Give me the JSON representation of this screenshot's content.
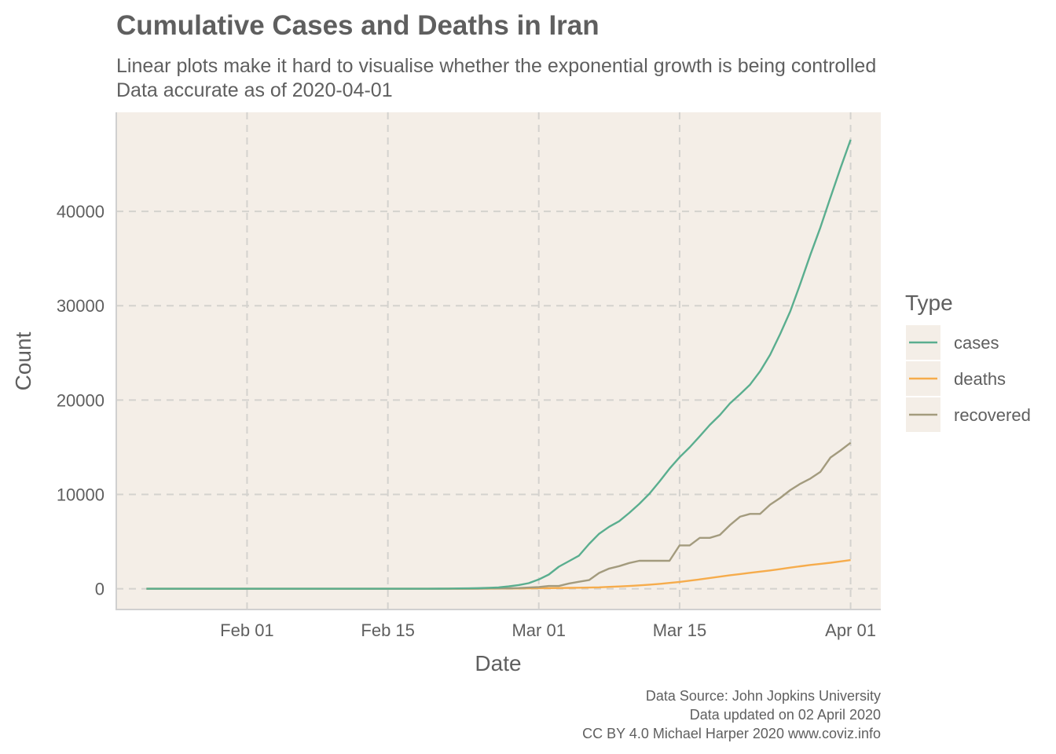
{
  "chart_data": {
    "type": "line",
    "title": "Cumulative Cases and Deaths in Iran",
    "subtitle_lines": [
      "Linear plots make it hard to visualise whether the exponential growth is being controlled",
      "Data accurate as of 2020-04-01"
    ],
    "xlabel": "Date",
    "ylabel": "Count",
    "x_ticks": [
      {
        "date": "2020-02-01",
        "label": "Feb 01"
      },
      {
        "date": "2020-02-15",
        "label": "Feb 15"
      },
      {
        "date": "2020-03-01",
        "label": "Mar 01"
      },
      {
        "date": "2020-03-15",
        "label": "Mar 15"
      },
      {
        "date": "2020-04-01",
        "label": "Apr 01"
      }
    ],
    "y_ticks": [
      0,
      10000,
      20000,
      30000,
      40000
    ],
    "xlim": [
      "2020-01-19",
      "2020-04-04"
    ],
    "ylim": [
      -2200,
      50500
    ],
    "grid": true,
    "legend": {
      "title": "Type",
      "position": "right"
    },
    "x": [
      "2020-01-22",
      "2020-01-29",
      "2020-02-05",
      "2020-02-12",
      "2020-02-19",
      "2020-02-20",
      "2020-02-21",
      "2020-02-22",
      "2020-02-23",
      "2020-02-24",
      "2020-02-25",
      "2020-02-26",
      "2020-02-27",
      "2020-02-28",
      "2020-02-29",
      "2020-03-01",
      "2020-03-02",
      "2020-03-03",
      "2020-03-04",
      "2020-03-05",
      "2020-03-06",
      "2020-03-07",
      "2020-03-08",
      "2020-03-09",
      "2020-03-10",
      "2020-03-11",
      "2020-03-12",
      "2020-03-13",
      "2020-03-14",
      "2020-03-15",
      "2020-03-16",
      "2020-03-17",
      "2020-03-18",
      "2020-03-19",
      "2020-03-20",
      "2020-03-21",
      "2020-03-22",
      "2020-03-23",
      "2020-03-24",
      "2020-03-25",
      "2020-03-26",
      "2020-03-27",
      "2020-03-28",
      "2020-03-29",
      "2020-03-30",
      "2020-03-31",
      "2020-04-01"
    ],
    "series": [
      {
        "name": "cases",
        "color": "#5aae8f",
        "values": [
          0,
          0,
          0,
          0,
          2,
          5,
          18,
          28,
          43,
          61,
          95,
          139,
          245,
          388,
          593,
          978,
          1501,
          2336,
          2922,
          3513,
          4747,
          5823,
          6566,
          7161,
          8042,
          9000,
          10075,
          11364,
          12729,
          13938,
          14991,
          16169,
          17361,
          18407,
          19644,
          20610,
          21638,
          23049,
          24811,
          27017,
          29406,
          32332,
          35408,
          38309,
          41495,
          44605,
          47593
        ]
      },
      {
        "name": "deaths",
        "color": "#f6ac4c",
        "values": [
          0,
          0,
          0,
          0,
          2,
          2,
          4,
          5,
          8,
          12,
          16,
          19,
          26,
          34,
          43,
          54,
          66,
          77,
          92,
          107,
          124,
          145,
          194,
          237,
          291,
          354,
          429,
          514,
          611,
          724,
          853,
          988,
          1135,
          1284,
          1433,
          1556,
          1685,
          1812,
          1934,
          2077,
          2234,
          2378,
          2517,
          2640,
          2757,
          2898,
          3036
        ]
      },
      {
        "name": "recovered",
        "color": "#a39b7e",
        "values": [
          0,
          0,
          0,
          0,
          0,
          0,
          0,
          0,
          0,
          0,
          49,
          49,
          49,
          73,
          123,
          175,
          291,
          291,
          552,
          739,
          913,
          1669,
          2134,
          2394,
          2731,
          2959,
          2959,
          2959,
          2959,
          4590,
          4590,
          5389,
          5389,
          5710,
          6745,
          7635,
          7931,
          7931,
          8913,
          9625,
          10457,
          11133,
          11679,
          12391,
          13911,
          14656,
          15473
        ]
      }
    ],
    "caption_lines": [
      "Data Source: John Jopkins University",
      "Data updated on 02 April 2020",
      "CC BY 4.0 Michael Harper 2020 www.coviz.info"
    ],
    "colors": {
      "panel_bg": "#f4eee7",
      "grid": "#d4d2ce",
      "axis_line": "#d0d0d0",
      "text": "#5f5f5f"
    }
  }
}
